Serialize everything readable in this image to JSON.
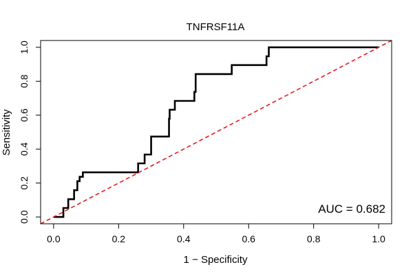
{
  "chart_data": {
    "type": "line",
    "title": "TNFRSF11A",
    "xlabel": "1 − Specificity",
    "ylabel": "Sensitivity",
    "xlim": [
      -0.04,
      1.04
    ],
    "ylim": [
      -0.04,
      1.04
    ],
    "x_ticks": [
      0.0,
      0.2,
      0.4,
      0.6,
      0.8,
      1.0
    ],
    "x_tick_labels": [
      "0.0",
      "0.2",
      "0.4",
      "0.6",
      "0.8",
      "1.0"
    ],
    "y_ticks": [
      0.0,
      0.2,
      0.4,
      0.6,
      0.8,
      1.0
    ],
    "y_tick_labels": [
      "0.0",
      "0.2",
      "0.4",
      "0.6",
      "0.8",
      "1.0"
    ],
    "grid": false,
    "annotation": "AUC = 0.682",
    "series": [
      {
        "color": "#000000",
        "style": "solid",
        "x": [
          0.0,
          0.03,
          0.03,
          0.045,
          0.045,
          0.063,
          0.063,
          0.073,
          0.073,
          0.08,
          0.08,
          0.09,
          0.09,
          0.26,
          0.26,
          0.28,
          0.28,
          0.3,
          0.3,
          0.355,
          0.355,
          0.357,
          0.357,
          0.373,
          0.373,
          0.433,
          0.433,
          0.437,
          0.437,
          0.548,
          0.548,
          0.655,
          0.655,
          0.662,
          0.662,
          1.0
        ],
        "y": [
          0.0,
          0.0,
          0.053,
          0.053,
          0.105,
          0.105,
          0.158,
          0.158,
          0.211,
          0.211,
          0.237,
          0.237,
          0.263,
          0.263,
          0.316,
          0.316,
          0.368,
          0.368,
          0.474,
          0.474,
          0.579,
          0.579,
          0.632,
          0.632,
          0.684,
          0.684,
          0.737,
          0.737,
          0.842,
          0.842,
          0.895,
          0.895,
          0.947,
          0.947,
          1.0,
          1.0
        ]
      },
      {
        "color": "#e41a1c",
        "style": "dashed",
        "x": [
          -0.04,
          1.04
        ],
        "y": [
          -0.04,
          1.04
        ]
      }
    ]
  }
}
